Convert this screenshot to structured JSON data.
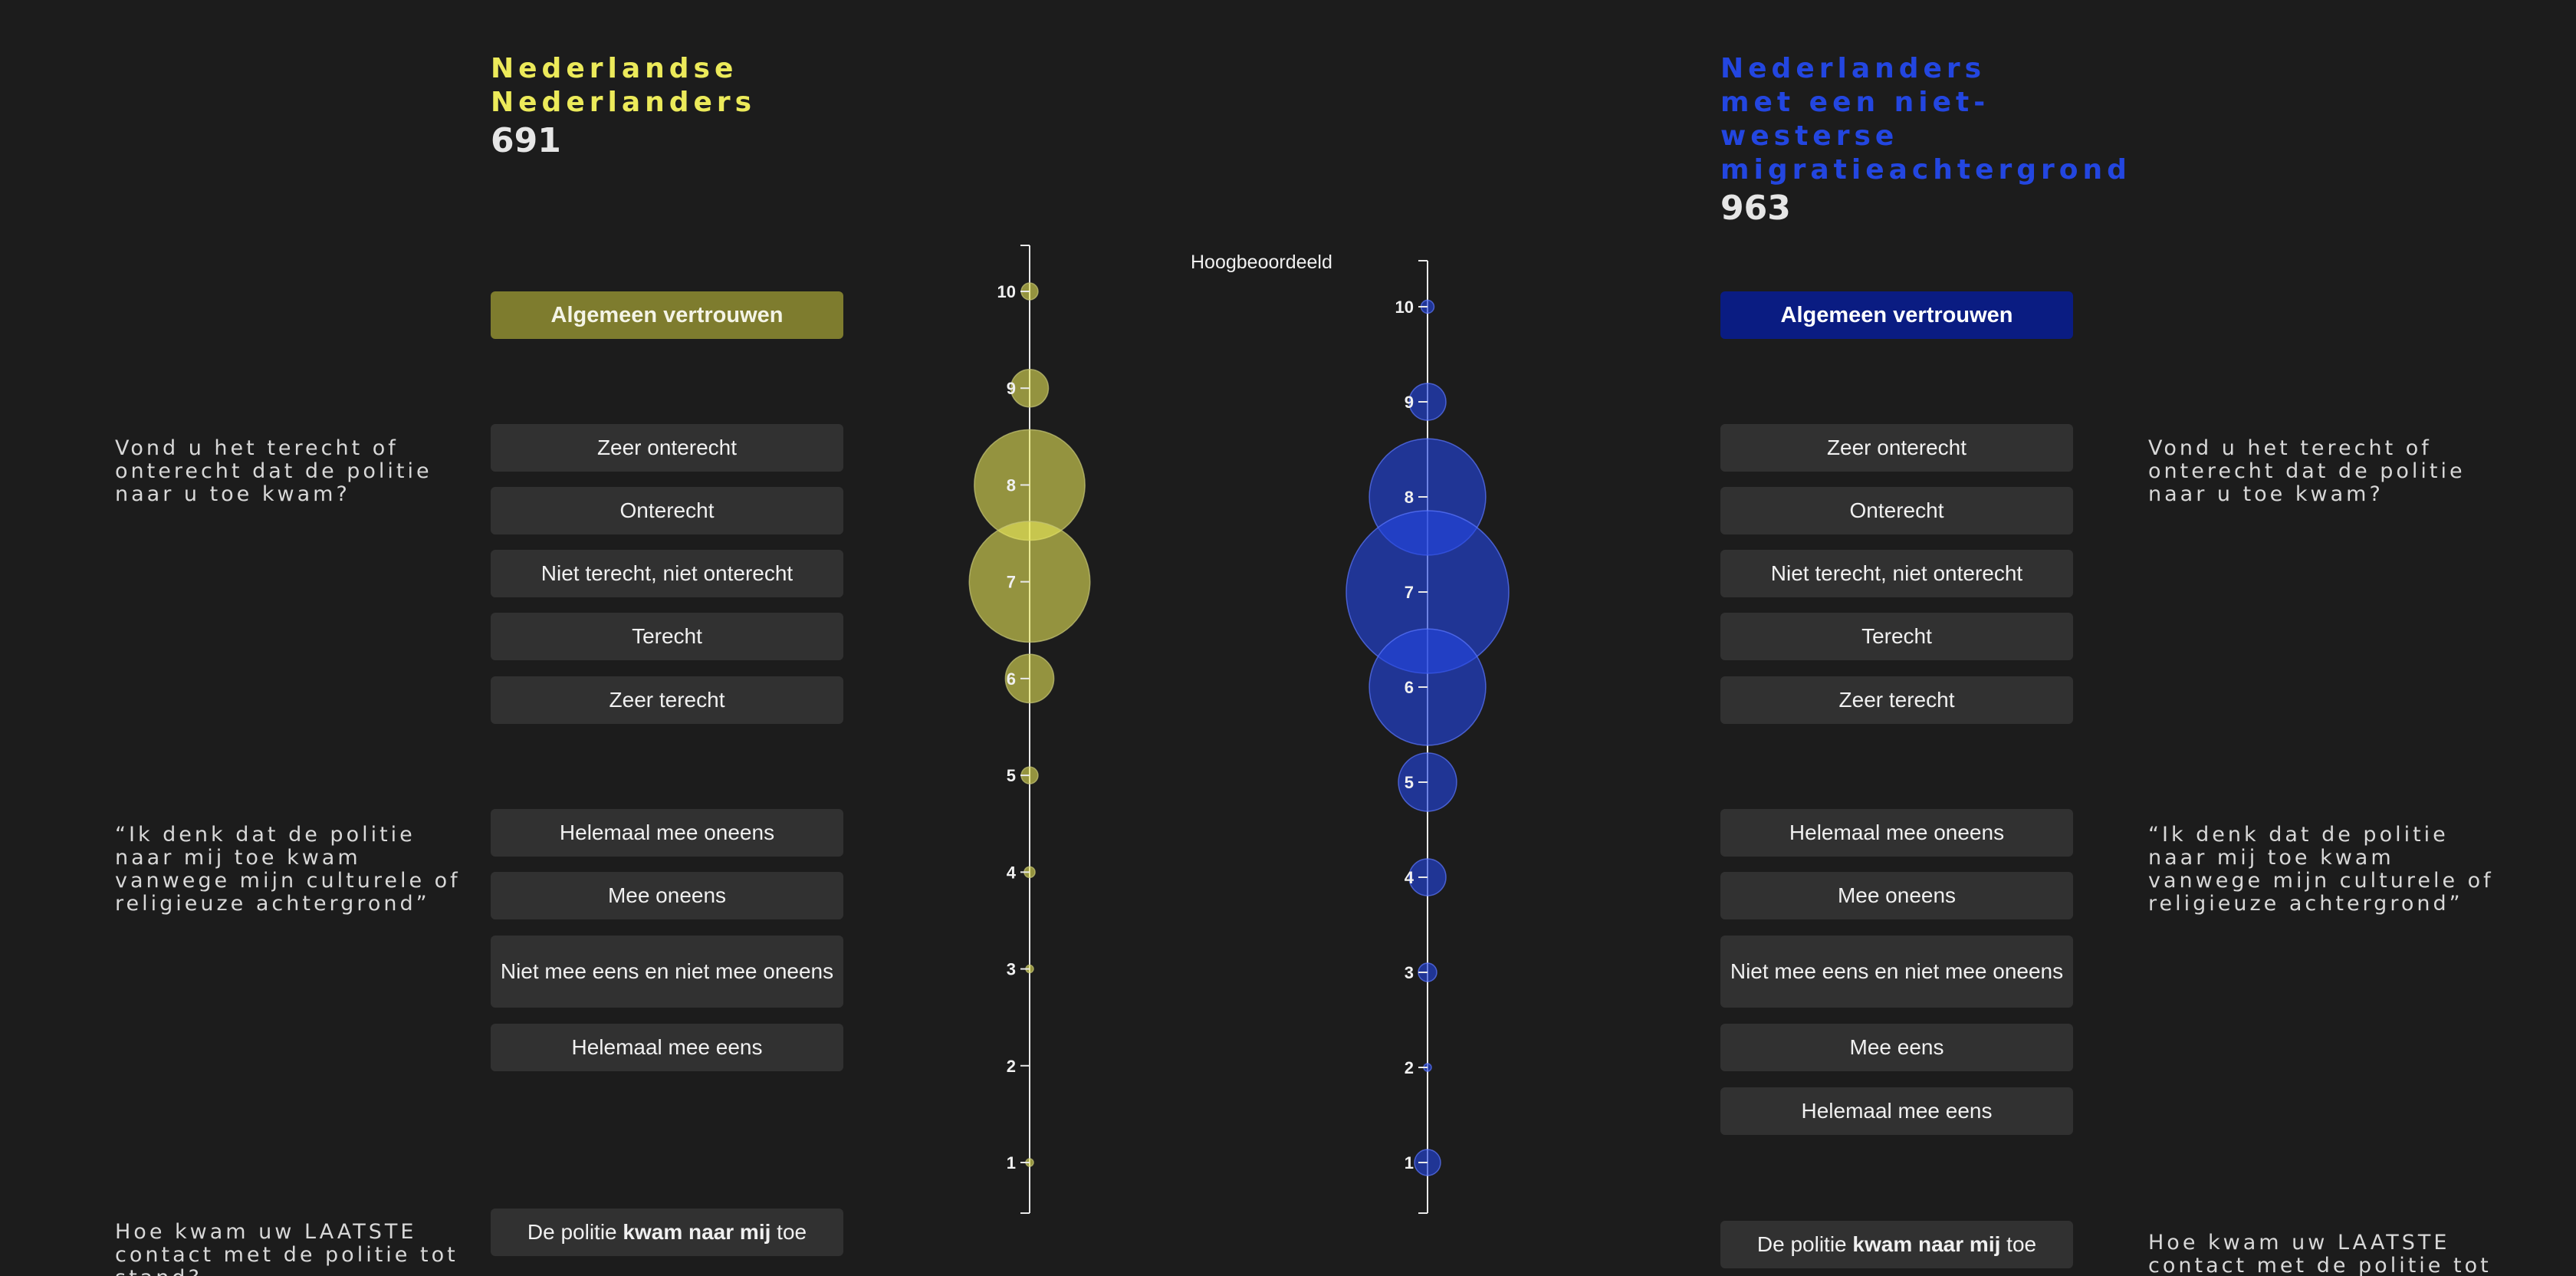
{
  "left": {
    "title_line1": "Nederlandse",
    "title_line2": "Nederlanders",
    "count": "691",
    "primary_button": "Algemeen vertrouwen",
    "group1_options": [
      "Zeer onterecht",
      "Onterecht",
      "Niet terecht, niet onterecht",
      "Terecht",
      "Zeer terecht"
    ],
    "group2_options": [
      "Helemaal mee oneens",
      "Mee oneens",
      "Niet mee eens en niet mee oneens",
      "Helemaal mee eens"
    ],
    "group3_prefix": "De politie ",
    "group3_bold": "kwam naar mij",
    "group3_suffix": " toe"
  },
  "right": {
    "title_line1": "Nederlanders",
    "title_line2": "met een niet-",
    "title_line3": "westerse",
    "title_line4": "migratieachtergrond",
    "count": "963",
    "primary_button": "Algemeen vertrouwen",
    "group1_options": [
      "Zeer onterecht",
      "Onterecht",
      "Niet terecht, niet onterecht",
      "Terecht",
      "Zeer terecht"
    ],
    "group2_options": [
      "Helemaal mee oneens",
      "Mee oneens",
      "Niet mee eens en niet mee oneens",
      "Mee eens",
      "Helemaal mee eens"
    ],
    "group3_prefix": "De politie ",
    "group3_bold": "kwam naar mij",
    "group3_suffix": " toe"
  },
  "questions": {
    "q1": "Vond u het terecht of onterecht dat de politie naar u toe kwam?",
    "q2": "“Ik denk dat de politie naar mij toe kwam vanwege mijn culturele of religieuze achtergrond”",
    "q3": "Hoe kwam uw LAATSTE contact met de politie tot stand?"
  },
  "chart_label": "Hoogbeoordeeld",
  "colors": {
    "yellow": "#ecea5a",
    "yellow_button": "#7e7c2e",
    "blue": "#2346e0",
    "blue_button": "#0a1c82",
    "background": "#1c1c1c"
  },
  "chart_data": {
    "type": "scatter",
    "description_axis": "trust score 1-10",
    "ylim": [
      1,
      10
    ],
    "yticks": [
      "1",
      "2",
      "3",
      "4",
      "5",
      "6",
      "7",
      "8",
      "9",
      "10"
    ],
    "series": [
      {
        "name": "Nederlandse Nederlanders",
        "color": "#ecea5a",
        "points": [
          {
            "y": 10,
            "weight": 0.012
          },
          {
            "y": 9,
            "weight": 0.06
          },
          {
            "y": 8,
            "weight": 0.52
          },
          {
            "y": 7,
            "weight": 0.62
          },
          {
            "y": 6,
            "weight": 0.1
          },
          {
            "y": 5,
            "weight": 0.012
          },
          {
            "y": 4,
            "weight": 0.005
          },
          {
            "y": 3,
            "weight": 0.002
          },
          {
            "y": 1,
            "weight": 0.002
          }
        ]
      },
      {
        "name": "Nederlanders met een niet-westerse migratieachtergrond",
        "color": "#2346e0",
        "points": [
          {
            "y": 10,
            "weight": 0.005
          },
          {
            "y": 9,
            "weight": 0.04
          },
          {
            "y": 8,
            "weight": 0.4
          },
          {
            "y": 7,
            "weight": 0.78
          },
          {
            "y": 6,
            "weight": 0.4
          },
          {
            "y": 5,
            "weight": 0.1
          },
          {
            "y": 4,
            "weight": 0.04
          },
          {
            "y": 3,
            "weight": 0.01
          },
          {
            "y": 2,
            "weight": 0.001
          },
          {
            "y": 1,
            "weight": 0.02
          }
        ]
      }
    ]
  }
}
